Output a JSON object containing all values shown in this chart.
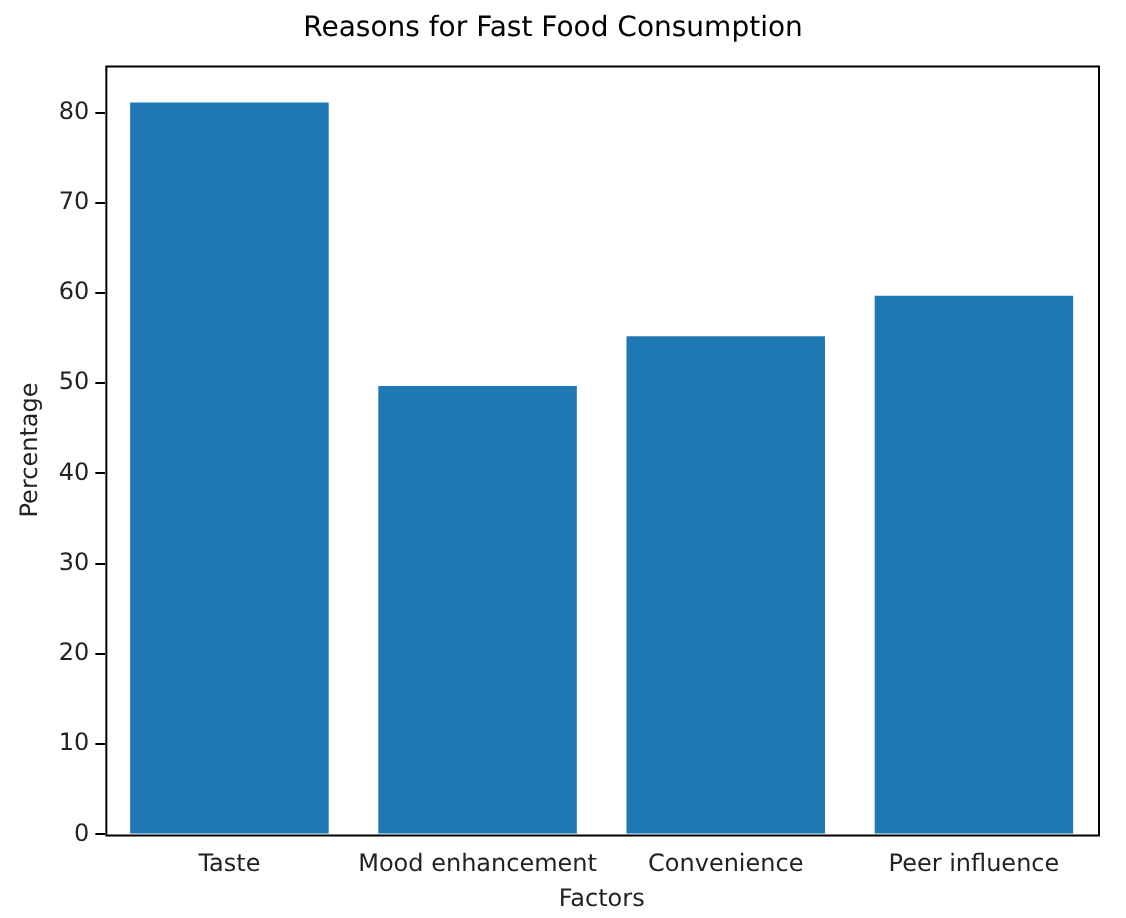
{
  "chart_data": {
    "type": "bar",
    "title": "Reasons for Fast Food Consumption",
    "xlabel": "Factors",
    "ylabel": "Percentage",
    "categories": [
      "Taste",
      "Mood enhancement",
      "Convenience",
      "Peer influence"
    ],
    "values": [
      81.1,
      49.7,
      55.2,
      59.7
    ],
    "color": "#1f77b4",
    "ylim": [
      0,
      85.2
    ],
    "yticks": [
      0,
      10,
      20,
      30,
      40,
      50,
      60,
      70,
      80
    ],
    "grid": false,
    "legend": false
  }
}
